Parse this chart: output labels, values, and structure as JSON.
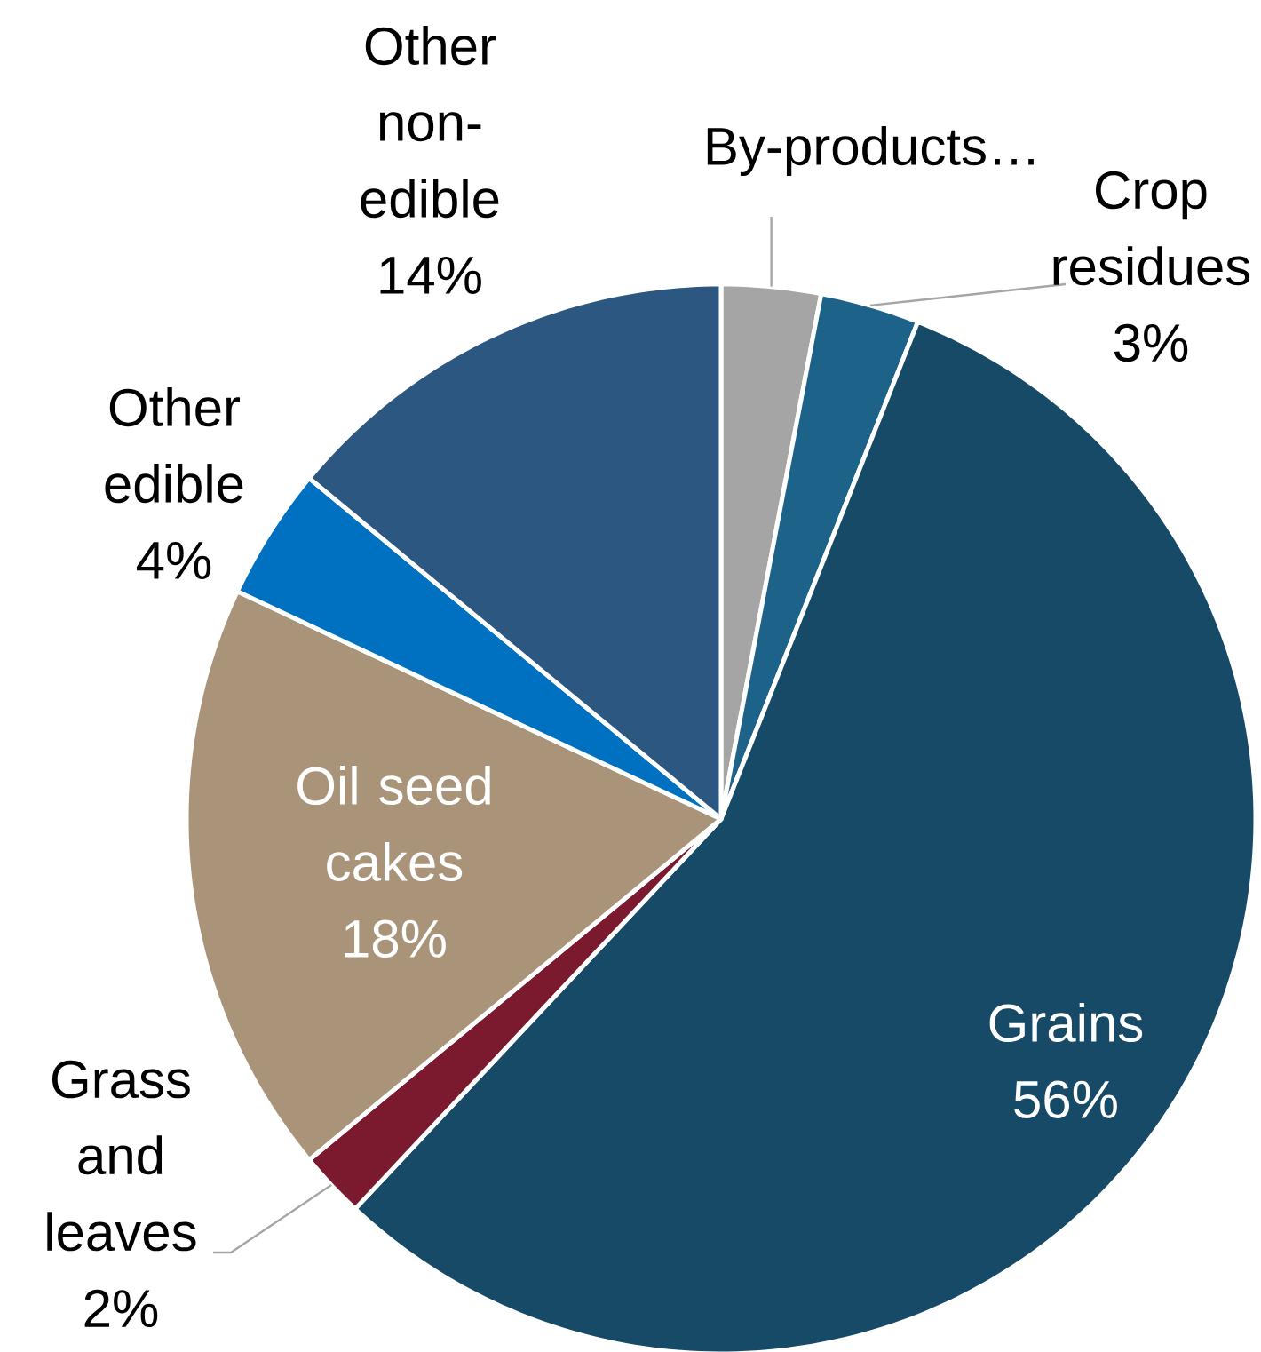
{
  "chart_data": {
    "type": "pie",
    "categories": [
      "By-products…",
      "Crop residues",
      "Grains",
      "Grass and leaves",
      "Oil seed cakes",
      "Other edible",
      "Other non-edible"
    ],
    "values": [
      3,
      3,
      56,
      2,
      18,
      4,
      14
    ],
    "colors": [
      "#a5a5a5",
      "#1c6289",
      "#174a67",
      "#7b1a2e",
      "#a9947a",
      "#0070c0",
      "#2c5780"
    ],
    "value_labels": [
      null,
      "3%",
      "56%",
      "2%",
      "18%",
      "4%",
      "14%"
    ]
  }
}
